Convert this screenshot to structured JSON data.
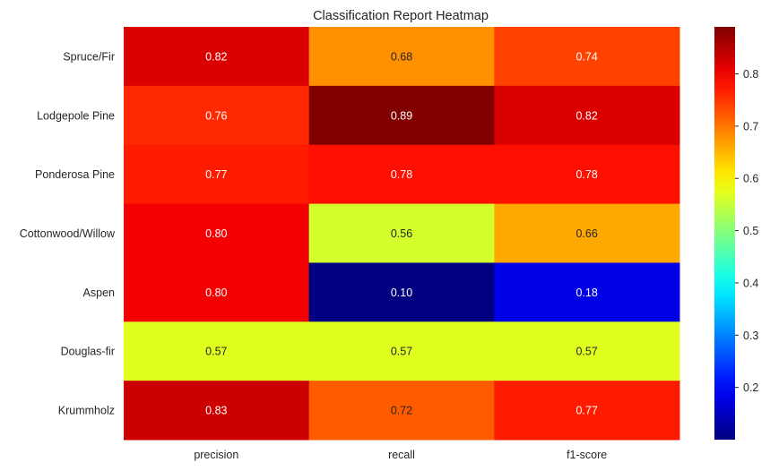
{
  "chart_data": {
    "type": "heatmap",
    "title": "Classification Report Heatmap",
    "xlabel": "",
    "ylabel": "",
    "columns": [
      "precision",
      "recall",
      "f1-score"
    ],
    "rows": [
      "Spruce/Fir",
      "Lodgepole Pine",
      "Ponderosa Pine",
      "Cottonwood/Willow",
      "Aspen",
      "Douglas-fir",
      "Krummholz"
    ],
    "values": [
      [
        0.82,
        0.68,
        0.74
      ],
      [
        0.76,
        0.89,
        0.82
      ],
      [
        0.77,
        0.78,
        0.78
      ],
      [
        0.8,
        0.56,
        0.66
      ],
      [
        0.8,
        0.1,
        0.18
      ],
      [
        0.57,
        0.57,
        0.57
      ],
      [
        0.83,
        0.72,
        0.77
      ]
    ],
    "value_format": "0.00",
    "colormap": "jet",
    "color_range": [
      0.1,
      0.89
    ],
    "colorbar": {
      "ticks": [
        "0.2",
        "0.3",
        "0.4",
        "0.5",
        "0.6",
        "0.7",
        "0.8"
      ],
      "tick_values": [
        0.2,
        0.3,
        0.4,
        0.5,
        0.6,
        0.7,
        0.8
      ],
      "position": "right"
    },
    "grid": false
  }
}
